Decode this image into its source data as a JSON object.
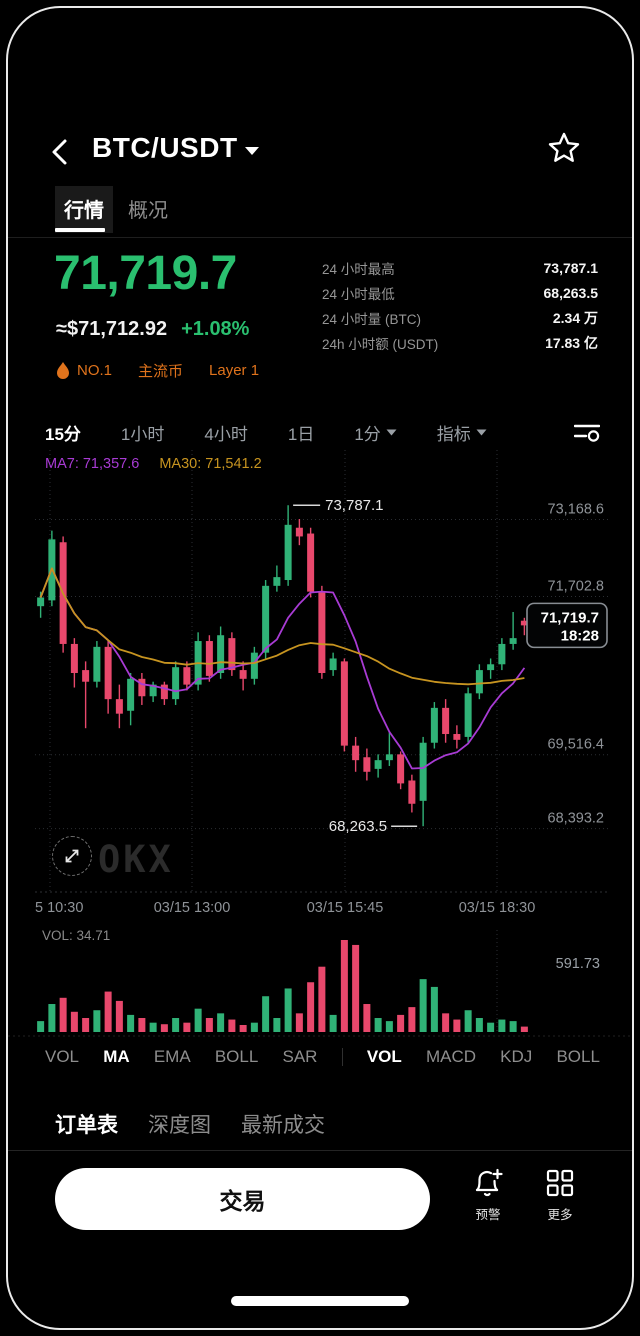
{
  "colors": {
    "up": "#30b277",
    "down": "#e8486c",
    "price_green": "#2abf6f",
    "ma7": "#a83bd4",
    "ma30": "#c79420",
    "badge_orange": "#e0731c",
    "grid": "#2b2e33",
    "axis_text": "#8f9398",
    "annotation": "#e8e8e8"
  },
  "header": {
    "title": "BTC/USDT",
    "back_icon": "chevron-left",
    "favorite_icon": "star-outline",
    "dropdown_icon": "caret-down"
  },
  "tabs": [
    {
      "label": "行情",
      "active": true
    },
    {
      "label": "概况",
      "active": false
    }
  ],
  "price": {
    "last": "71,719.7",
    "fiat": "≈$71,712.92",
    "change": "+1.08%"
  },
  "badges": [
    {
      "icon": "flame-icon",
      "label": "NO.1"
    },
    {
      "label": "主流币"
    },
    {
      "label": "Layer 1"
    }
  ],
  "stats": [
    {
      "label": "24 小时最高",
      "value": "73,787.1"
    },
    {
      "label": "24 小时最低",
      "value": "68,263.5"
    },
    {
      "label": "24 小时量 (BTC)",
      "value": "2.34 万"
    },
    {
      "label": "24h 小时额 (USDT)",
      "value": "17.83 亿"
    }
  ],
  "timeframes": [
    {
      "label": "15分",
      "active": true,
      "dropdown": false
    },
    {
      "label": "1小时",
      "active": false,
      "dropdown": false
    },
    {
      "label": "4小时",
      "active": false,
      "dropdown": false
    },
    {
      "label": "1日",
      "active": false,
      "dropdown": false
    },
    {
      "label": "1分",
      "active": false,
      "dropdown": true
    },
    {
      "label": "指标",
      "active": false,
      "dropdown": true
    }
  ],
  "chart_data": {
    "type": "candlestick",
    "interval": "15m",
    "legend": {
      "ma7": "MA7: 71,357.6",
      "ma30": "MA30: 71,541.2"
    },
    "y_axis": {
      "range": [
        67200,
        74600
      ],
      "labels": [
        {
          "value": 73168.6,
          "label": "73,168.6"
        },
        {
          "value": 71702.8,
          "label": "71,702.8"
        },
        {
          "value": 69516.4,
          "label": "69,516.4"
        },
        {
          "value": 68393.2,
          "label": "68,393.2"
        }
      ]
    },
    "x_labels": [
      "5 10:30",
      "03/15 13:00",
      "03/15 15:45",
      "03/15 18:30"
    ],
    "annotations": {
      "high": {
        "value": 73787.1,
        "label": "73,787.1"
      },
      "low": {
        "value": 68263.5,
        "label": "68,263.5"
      }
    },
    "current_price": {
      "value": 71719.7,
      "label": "71,719.7",
      "time": "18:28"
    },
    "ma_periods": [
      7,
      30
    ],
    "candles": [
      [
        72050,
        72300,
        71850,
        72200
      ],
      [
        72150,
        73350,
        72050,
        73200
      ],
      [
        73150,
        73250,
        71250,
        71400
      ],
      [
        71400,
        71500,
        70650,
        70900
      ],
      [
        70950,
        71100,
        69950,
        70750
      ],
      [
        70750,
        71450,
        70650,
        71350
      ],
      [
        71350,
        71450,
        70200,
        70450
      ],
      [
        70450,
        70700,
        69950,
        70200
      ],
      [
        70250,
        70900,
        70000,
        70800
      ],
      [
        70800,
        70900,
        70350,
        70500
      ],
      [
        70500,
        70750,
        70400,
        70700
      ],
      [
        70700,
        70750,
        70350,
        70450
      ],
      [
        70450,
        71100,
        70350,
        71000
      ],
      [
        71000,
        71100,
        70600,
        70700
      ],
      [
        70700,
        71600,
        70600,
        71450
      ],
      [
        71450,
        71550,
        70750,
        70850
      ],
      [
        70900,
        71700,
        70800,
        71550
      ],
      [
        71500,
        71600,
        70850,
        70950
      ],
      [
        70950,
        71100,
        70600,
        70800
      ],
      [
        70800,
        71350,
        70700,
        71250
      ],
      [
        71250,
        72500,
        71150,
        72400
      ],
      [
        72400,
        72750,
        72300,
        72550
      ],
      [
        72500,
        73787.1,
        72400,
        73450
      ],
      [
        73400,
        73550,
        73100,
        73250
      ],
      [
        73300,
        73400,
        72200,
        72300
      ],
      [
        72300,
        72400,
        70800,
        70900
      ],
      [
        70950,
        71250,
        70850,
        71150
      ],
      [
        71100,
        71150,
        69550,
        69650
      ],
      [
        69650,
        69800,
        69200,
        69400
      ],
      [
        69450,
        69600,
        69050,
        69200
      ],
      [
        69250,
        69500,
        69100,
        69400
      ],
      [
        69400,
        69900,
        69300,
        69500
      ],
      [
        69500,
        69550,
        68900,
        69000
      ],
      [
        69050,
        69150,
        68500,
        68650
      ],
      [
        68700,
        69800,
        68263.5,
        69700
      ],
      [
        69700,
        70400,
        69600,
        70300
      ],
      [
        70300,
        70450,
        69700,
        69850
      ],
      [
        69850,
        70000,
        69600,
        69750
      ],
      [
        69800,
        70650,
        69700,
        70550
      ],
      [
        70550,
        71050,
        70450,
        70950
      ],
      [
        70950,
        71150,
        70800,
        71050
      ],
      [
        71050,
        71500,
        70950,
        71400
      ],
      [
        71400,
        71950,
        71300,
        71500
      ],
      [
        71800,
        71850,
        71550,
        71719.7
      ]
    ],
    "volume": {
      "legend": "VOL: 34.71",
      "scale_label": "591.73",
      "max": 591.73,
      "values": [
        70,
        180,
        220,
        130,
        90,
        140,
        260,
        200,
        110,
        90,
        60,
        50,
        90,
        60,
        150,
        90,
        120,
        80,
        45,
        60,
        230,
        90,
        280,
        120,
        320,
        420,
        110,
        591.73,
        560,
        180,
        90,
        70,
        110,
        160,
        340,
        290,
        120,
        80,
        140,
        90,
        60,
        80,
        70,
        34.71
      ]
    }
  },
  "indicator_tabs": {
    "main": [
      {
        "label": "VOL",
        "active": false
      },
      {
        "label": "MA",
        "active": true
      },
      {
        "label": "EMA",
        "active": false
      },
      {
        "label": "BOLL",
        "active": false
      },
      {
        "label": "SAR",
        "active": false
      }
    ],
    "sub": [
      {
        "label": "VOL",
        "active": true
      },
      {
        "label": "MACD",
        "active": false
      },
      {
        "label": "KDJ",
        "active": false
      },
      {
        "label": "BOLL",
        "active": false
      }
    ]
  },
  "bottom_tabs": [
    {
      "label": "订单表",
      "active": true
    },
    {
      "label": "深度图",
      "active": false
    },
    {
      "label": "最新成交",
      "active": false
    }
  ],
  "actions": {
    "trade": "交易",
    "alert": "预警",
    "more": "更多"
  },
  "watermark": "OKX"
}
